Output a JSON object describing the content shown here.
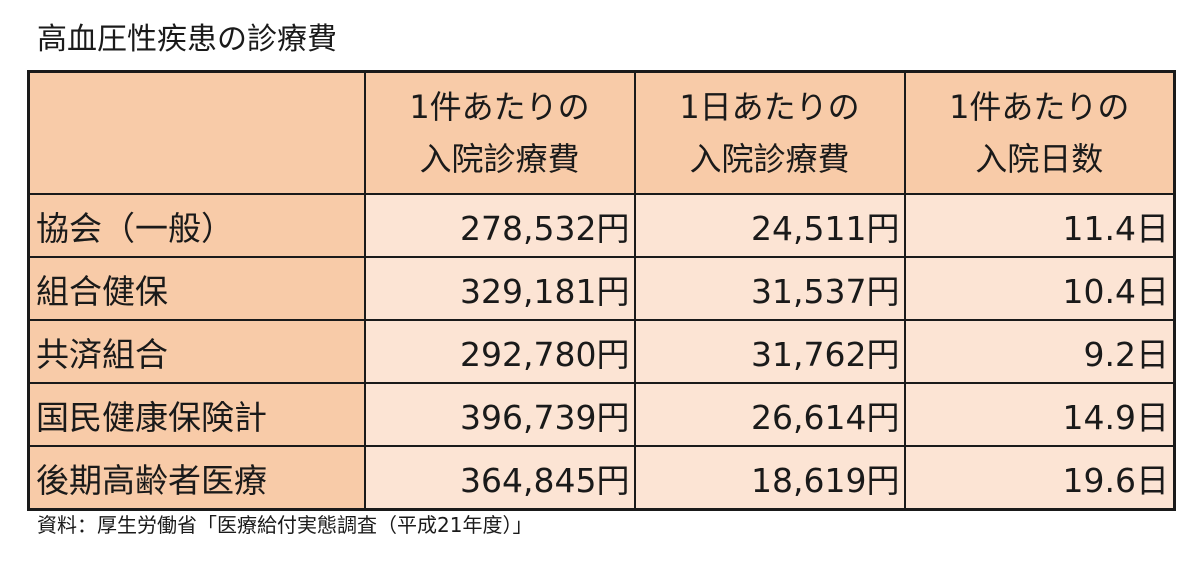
{
  "title": "高血圧性疾患の診療費",
  "table": {
    "columns": [
      {
        "line1": "1件あたりの",
        "line2": "入院診療費"
      },
      {
        "line1": "1日あたりの",
        "line2": "入院診療費"
      },
      {
        "line1": "1件あたりの",
        "line2": "入院日数"
      }
    ],
    "rows": [
      {
        "label": "協会（一般）",
        "cells": [
          "278,532円",
          "24,511円",
          "11.4日"
        ]
      },
      {
        "label": "組合健保",
        "cells": [
          "329,181円",
          "31,537円",
          "10.4日"
        ]
      },
      {
        "label": "共済組合",
        "cells": [
          "292,780円",
          "31,762円",
          "9.2日"
        ]
      },
      {
        "label": "国民健康保険計",
        "cells": [
          "396,739円",
          "26,614円",
          "14.9日"
        ]
      },
      {
        "label": "後期高齢者医療",
        "cells": [
          "364,845円",
          "18,619円",
          "19.6日"
        ]
      }
    ]
  },
  "source": "資料：厚生労働省「医療給付実態調査（平成21年度）」",
  "colors": {
    "header_fill": "#f8cba8",
    "cell_fill": "#fce4d4",
    "border": "#1a1a1a"
  }
}
